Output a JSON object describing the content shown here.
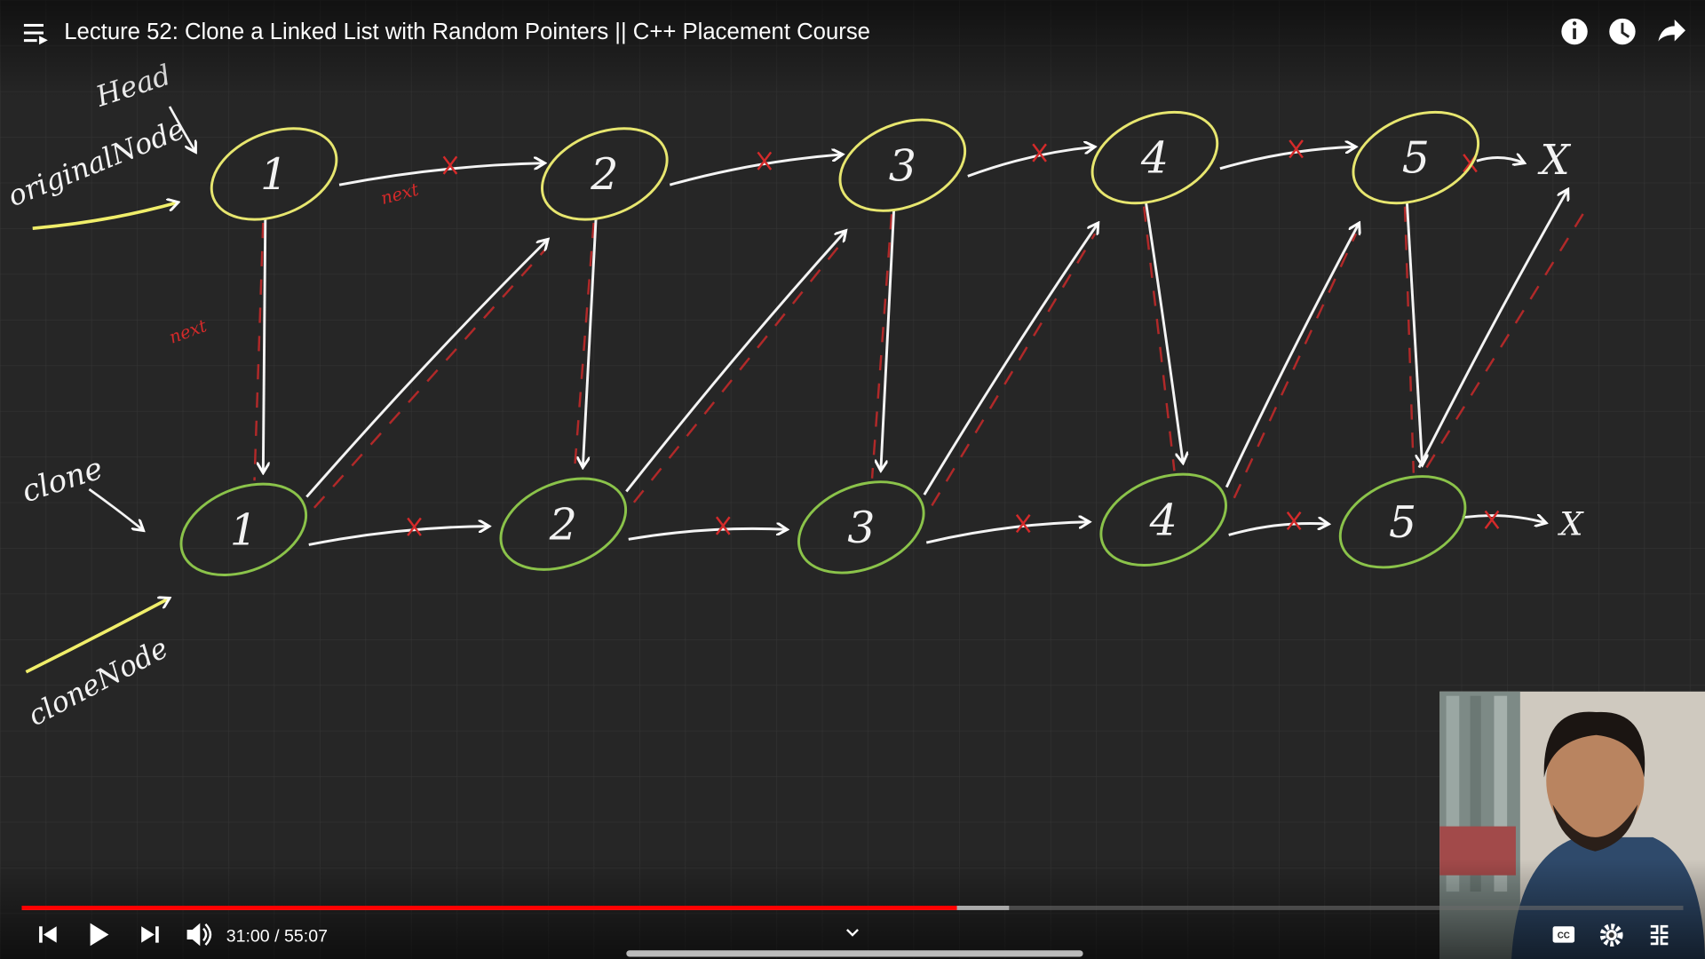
{
  "player": {
    "title": "Lecture 52: Clone a Linked List with Random Pointers || C++ Placement Course",
    "time": "31:00 / 55:07"
  },
  "whiteboard": {
    "head_label": "Head",
    "original_label": "originalNode",
    "clone_label": "clone",
    "clone_node_label": "cloneNode",
    "next_labels": [
      "next",
      "next"
    ],
    "original_nodes": [
      "1",
      "2",
      "3",
      "4",
      "5"
    ],
    "clone_nodes": [
      "1",
      "2",
      "3",
      "4",
      "5"
    ],
    "null_marks": [
      "X",
      "X"
    ]
  }
}
